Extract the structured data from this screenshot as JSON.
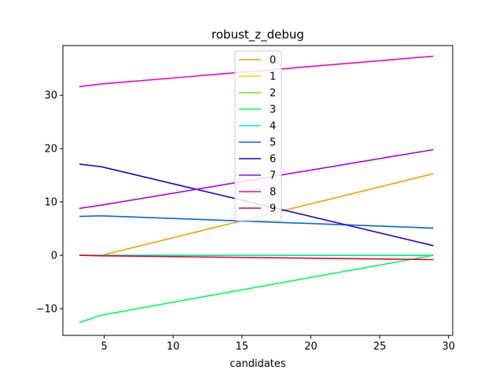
{
  "chart_data": {
    "type": "line",
    "title": "robust_z_debug",
    "xlabel": "candidates",
    "ylabel": "",
    "xlim": [
      2.0,
      30.3
    ],
    "ylim": [
      -15.0,
      39.3
    ],
    "xticks": [
      5,
      10,
      15,
      20,
      25,
      30
    ],
    "yticks": [
      -10,
      0,
      10,
      20,
      30
    ],
    "grid": false,
    "legend_position": "top-center",
    "series": [
      {
        "name": "0",
        "color": "#ff9900",
        "x": [
          3.2,
          4.8,
          28.9
        ],
        "y": [
          0.0,
          0.0,
          15.3
        ]
      },
      {
        "name": "1",
        "color": "#e6e600",
        "x": [
          3.2,
          4.8,
          28.9
        ],
        "y": [
          0.0,
          0.0,
          0.0
        ]
      },
      {
        "name": "2",
        "color": "#66ee00",
        "x": [
          3.2,
          4.8,
          28.9
        ],
        "y": [
          0.0,
          0.0,
          0.0
        ]
      },
      {
        "name": "3",
        "color": "#00ff55",
        "x": [
          3.2,
          4.8,
          28.9
        ],
        "y": [
          -12.6,
          -11.2,
          0.0
        ]
      },
      {
        "name": "4",
        "color": "#00eecc",
        "x": [
          3.2,
          4.8,
          28.9
        ],
        "y": [
          0.0,
          0.0,
          0.0
        ]
      },
      {
        "name": "5",
        "color": "#0066ee",
        "x": [
          3.2,
          4.8,
          28.9
        ],
        "y": [
          7.3,
          7.4,
          5.1
        ]
      },
      {
        "name": "6",
        "color": "#2200dd",
        "x": [
          3.2,
          4.8,
          28.9
        ],
        "y": [
          17.1,
          16.6,
          1.8
        ]
      },
      {
        "name": "7",
        "color": "#aa00ee",
        "x": [
          3.2,
          4.8,
          28.9
        ],
        "y": [
          8.8,
          9.4,
          19.8
        ]
      },
      {
        "name": "8",
        "color": "#ee00cc",
        "x": [
          3.2,
          4.8,
          28.9
        ],
        "y": [
          31.6,
          32.1,
          37.3
        ]
      },
      {
        "name": "9",
        "color": "#ee0022",
        "x": [
          3.2,
          4.8,
          28.9
        ],
        "y": [
          0.0,
          -0.1,
          -0.8
        ]
      }
    ]
  }
}
